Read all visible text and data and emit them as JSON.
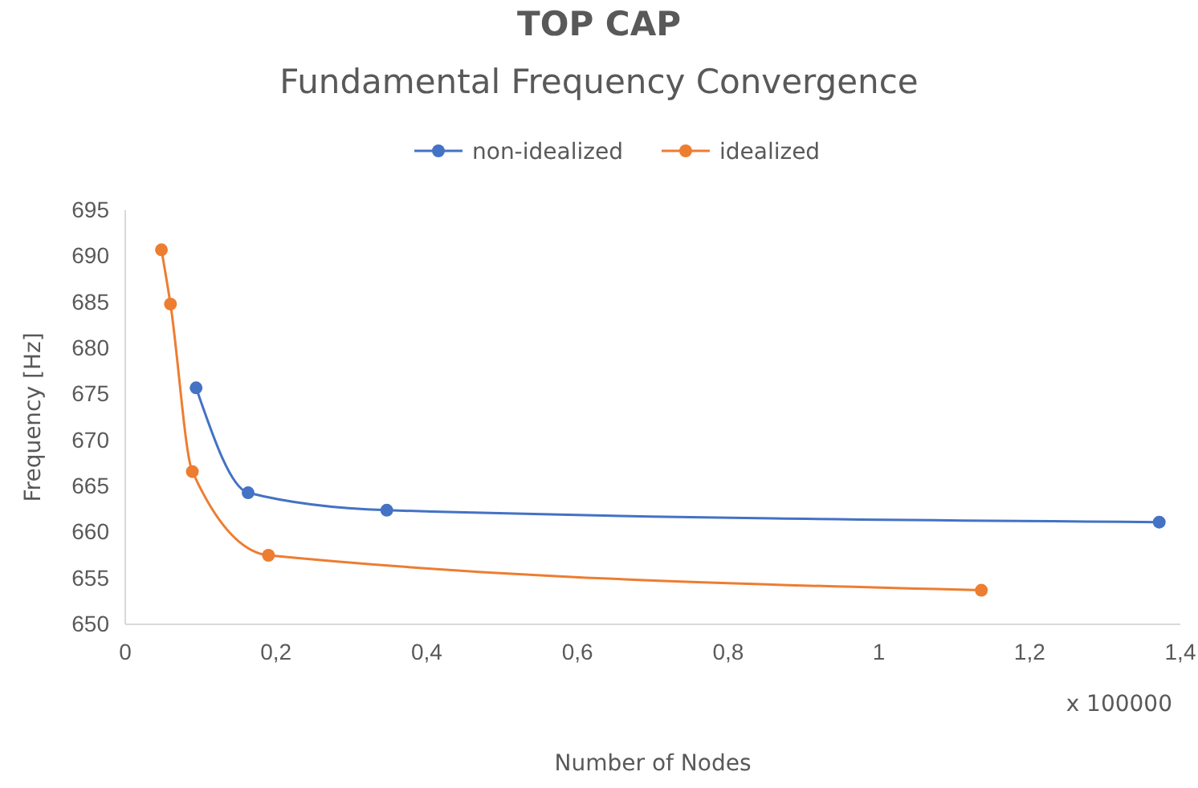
{
  "chart_data": {
    "type": "line",
    "title": "TOP CAP",
    "subtitle": "Fundamental Frequency Convergence",
    "xlabel": "Number of Nodes",
    "ylabel": "Frequency [Hz]",
    "annotations": [
      "x 100000"
    ],
    "series": [
      {
        "name": "non-idealized",
        "color": "#4472c4",
        "x": [
          0.094,
          0.163,
          0.347,
          1.372
        ],
        "values": [
          675.7,
          664.3,
          662.4,
          661.1
        ]
      },
      {
        "name": "idealized",
        "color": "#ed7d31",
        "x": [
          0.048,
          0.06,
          0.089,
          0.19,
          1.136
        ],
        "values": [
          690.7,
          684.8,
          666.6,
          657.5,
          653.7
        ]
      }
    ],
    "xlim": [
      0,
      1.4
    ],
    "xticks": [
      0,
      {
        "value": 0.2,
        "label": "0,2"
      },
      {
        "value": 0.4,
        "label": "0,4"
      },
      {
        "value": 0.6,
        "label": "0,6"
      },
      {
        "value": 0.8,
        "label": "0,8"
      },
      1,
      {
        "value": 1.2,
        "label": "1,2"
      },
      {
        "value": 1.4,
        "label": "1,4"
      }
    ],
    "ylim": [
      650,
      695
    ],
    "yticks": [
      650,
      655,
      660,
      665,
      670,
      675,
      680,
      685,
      690,
      695
    ],
    "grid": false,
    "legend": "top",
    "marker": "circle",
    "line_style": "solid"
  }
}
